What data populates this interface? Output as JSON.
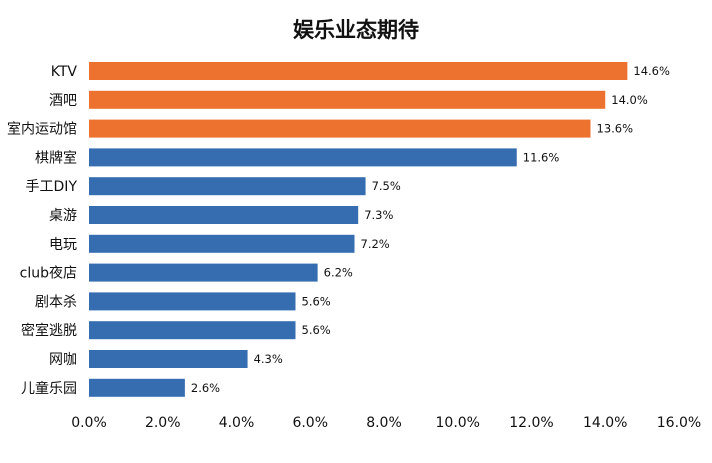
{
  "chart_data": {
    "type": "bar",
    "orientation": "horizontal",
    "title": "娱乐业态期待",
    "categories": [
      "KTV",
      "酒吧",
      "室内运动馆",
      "棋牌室",
      "手工DIY",
      "桌游",
      "电玩",
      "club夜店",
      "剧本杀",
      "密室逃脱",
      "网咖",
      "儿童乐园"
    ],
    "values": [
      14.6,
      14.0,
      13.6,
      11.6,
      7.5,
      7.3,
      7.2,
      6.2,
      5.6,
      5.6,
      4.3,
      2.6
    ],
    "data_labels": [
      "14.6%",
      "14.0%",
      "13.6%",
      "11.6%",
      "7.5%",
      "7.3%",
      "7.2%",
      "6.2%",
      "5.6%",
      "5.6%",
      "4.3%",
      "2.6%"
    ],
    "xlim": [
      0,
      16
    ],
    "x_ticks": [
      0,
      2,
      4,
      6,
      8,
      10,
      12,
      14,
      16
    ],
    "x_tick_labels": [
      "0.0%",
      "2.0%",
      "4.0%",
      "6.0%",
      "8.0%",
      "10.0%",
      "12.0%",
      "14.0%",
      "16.0%"
    ],
    "xlabel": "",
    "ylabel": "",
    "grid": false,
    "legend": "none",
    "colors": {
      "highlight": "#ED7230",
      "default": "#356DB0",
      "highlight_count": 3
    }
  }
}
